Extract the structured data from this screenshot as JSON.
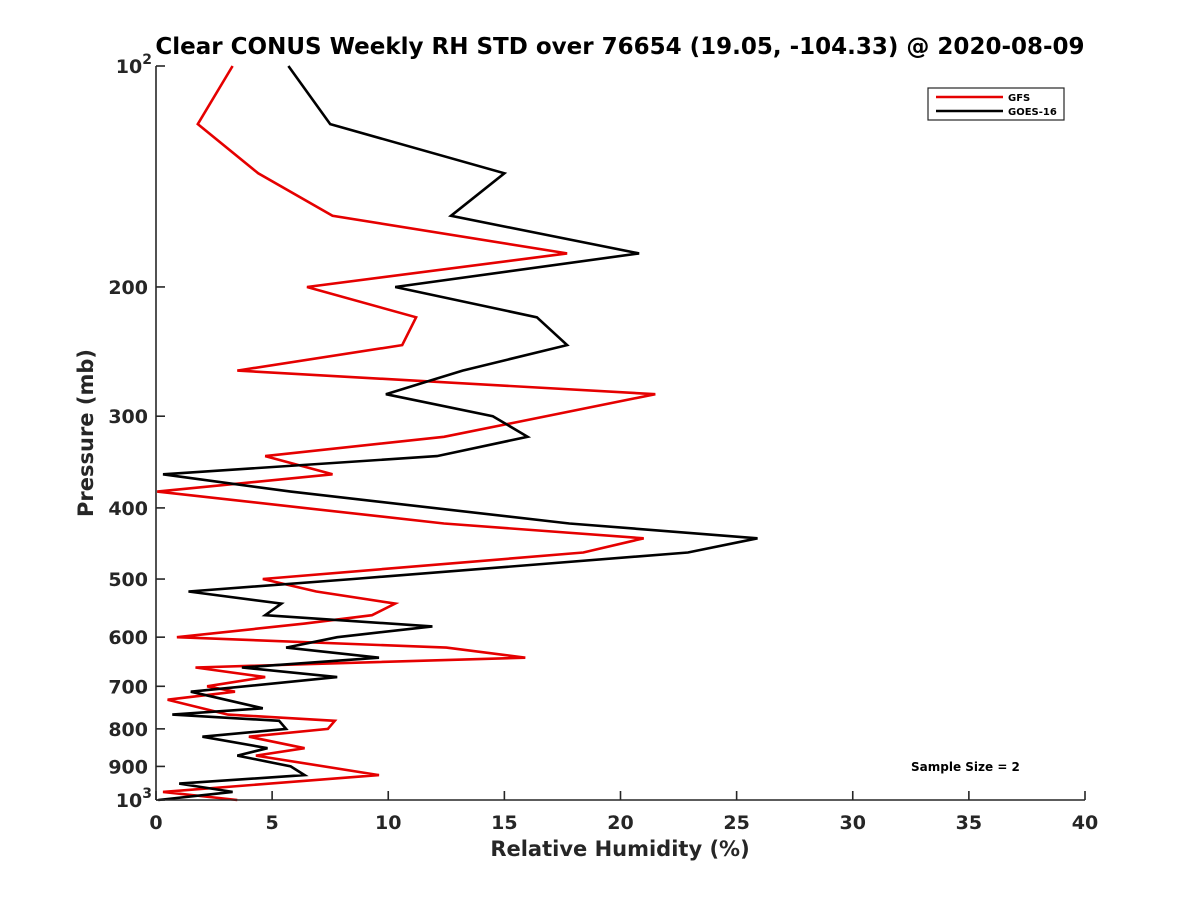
{
  "chart_data": {
    "type": "line",
    "title": "Clear CONUS Weekly RH STD over 76654 (19.05, -104.33) @ 2020-08-09",
    "xlabel": "Relative Humidity (%)",
    "ylabel": "Pressure (mb)",
    "xlim": [
      0,
      40
    ],
    "ylim": [
      100,
      1000
    ],
    "yscale": "log",
    "y_inverted": true,
    "grid": false,
    "legend_position": "top-right",
    "x_ticks": [
      0,
      5,
      10,
      15,
      20,
      25,
      30,
      35,
      40
    ],
    "x_tick_labels": [
      "0",
      "5",
      "10",
      "15",
      "20",
      "25",
      "30",
      "35",
      "40"
    ],
    "y_ticks": [
      {
        "value": 100,
        "base": "10",
        "exp": "2",
        "label": ""
      },
      {
        "value": 200,
        "label": "200"
      },
      {
        "value": 300,
        "label": "300"
      },
      {
        "value": 400,
        "label": "400"
      },
      {
        "value": 500,
        "label": "500"
      },
      {
        "value": 600,
        "label": "600"
      },
      {
        "value": 700,
        "label": "700"
      },
      {
        "value": 800,
        "label": "800"
      },
      {
        "value": 900,
        "label": "900"
      },
      {
        "value": 1000,
        "base": "10",
        "exp": "3",
        "label": ""
      }
    ],
    "annotation": "Sample Size = 2",
    "series": [
      {
        "name": "GFS",
        "color": "#e50000",
        "points": [
          [
            3.3,
            100
          ],
          [
            1.8,
            120
          ],
          [
            4.4,
            140
          ],
          [
            7.6,
            160
          ],
          [
            17.7,
            180
          ],
          [
            6.5,
            200
          ],
          [
            11.2,
            220
          ],
          [
            10.6,
            240
          ],
          [
            3.5,
            260
          ],
          [
            21.5,
            280
          ],
          [
            12.4,
            320
          ],
          [
            4.7,
            340
          ],
          [
            7.6,
            360
          ],
          [
            0.05,
            380
          ],
          [
            12.4,
            420
          ],
          [
            21.0,
            440
          ],
          [
            18.4,
            460
          ],
          [
            4.6,
            500
          ],
          [
            6.9,
            520
          ],
          [
            10.3,
            540
          ],
          [
            9.3,
            560
          ],
          [
            6.4,
            575
          ],
          [
            0.9,
            600
          ],
          [
            12.5,
            620
          ],
          [
            15.9,
            640
          ],
          [
            1.7,
            660
          ],
          [
            4.7,
            680
          ],
          [
            2.2,
            700
          ],
          [
            3.4,
            712
          ],
          [
            0.5,
            730
          ],
          [
            3.1,
            765
          ],
          [
            7.7,
            780
          ],
          [
            7.4,
            800
          ],
          [
            4.0,
            820
          ],
          [
            6.4,
            850
          ],
          [
            4.3,
            870
          ],
          [
            9.6,
            925
          ],
          [
            0.3,
            975
          ],
          [
            3.5,
            1000
          ]
        ]
      },
      {
        "name": "GOES-16",
        "color": "#000000",
        "points": [
          [
            5.7,
            100
          ],
          [
            7.5,
            120
          ],
          [
            15.0,
            140
          ],
          [
            12.7,
            160
          ],
          [
            20.8,
            180
          ],
          [
            10.3,
            200
          ],
          [
            16.4,
            220
          ],
          [
            17.7,
            240
          ],
          [
            13.2,
            260
          ],
          [
            9.9,
            280
          ],
          [
            14.5,
            300
          ],
          [
            16.0,
            320
          ],
          [
            12.1,
            340
          ],
          [
            0.3,
            360
          ],
          [
            5.8,
            380
          ],
          [
            17.8,
            420
          ],
          [
            25.9,
            440
          ],
          [
            22.9,
            460
          ],
          [
            8.5,
            500
          ],
          [
            1.4,
            520
          ],
          [
            5.4,
            540
          ],
          [
            4.7,
            560
          ],
          [
            11.9,
            580
          ],
          [
            7.8,
            600
          ],
          [
            5.6,
            620
          ],
          [
            9.6,
            640
          ],
          [
            3.7,
            660
          ],
          [
            7.8,
            680
          ],
          [
            1.5,
            712
          ],
          [
            4.6,
            750
          ],
          [
            0.7,
            765
          ],
          [
            5.3,
            780
          ],
          [
            5.6,
            800
          ],
          [
            2.0,
            820
          ],
          [
            4.8,
            850
          ],
          [
            3.5,
            870
          ],
          [
            5.8,
            900
          ],
          [
            6.4,
            925
          ],
          [
            1.0,
            950
          ],
          [
            3.3,
            975
          ],
          [
            0.1,
            1000
          ]
        ]
      }
    ]
  }
}
